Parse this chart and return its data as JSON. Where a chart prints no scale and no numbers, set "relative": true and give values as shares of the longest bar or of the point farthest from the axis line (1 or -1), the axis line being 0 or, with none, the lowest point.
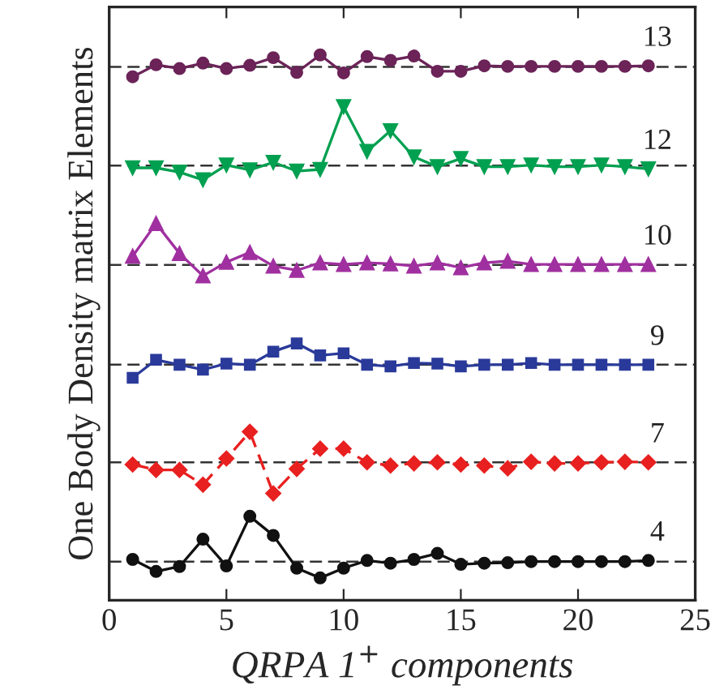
{
  "chart_data": {
    "type": "line",
    "relative": true,
    "xlabel": "QRPA 1$^{+}$ components",
    "ylabel": "One Body Density matrix Elements",
    "x": [
      1,
      2,
      3,
      4,
      5,
      6,
      7,
      8,
      9,
      10,
      11,
      12,
      13,
      14,
      15,
      16,
      17,
      18,
      19,
      20,
      21,
      22,
      23
    ],
    "xlim": [
      0,
      25
    ],
    "xticks": [
      0,
      5,
      10,
      15,
      20,
      25
    ],
    "grid": false,
    "legend": false,
    "series": [
      {
        "name": "13",
        "color": "#6b2358",
        "marker": "circle",
        "line_style": "solid",
        "values": [
          0.96,
          0.982,
          0.975,
          0.985,
          0.975,
          0.981,
          0.995,
          0.968,
          1.0,
          0.967,
          0.997,
          0.99,
          0.998,
          0.97,
          0.97,
          0.98,
          0.979,
          0.979,
          0.979,
          0.979,
          0.979,
          0.979,
          0.98
        ]
      },
      {
        "name": "12",
        "color": "#00a050",
        "marker": "triangle_down",
        "line_style": "solid",
        "values": [
          0.793,
          0.793,
          0.785,
          0.771,
          0.798,
          0.789,
          0.803,
          0.787,
          0.79,
          0.905,
          0.823,
          0.861,
          0.813,
          0.795,
          0.81,
          0.795,
          0.795,
          0.798,
          0.795,
          0.795,
          0.798,
          0.795,
          0.791
        ]
      },
      {
        "name": "10",
        "color": "#a030a0",
        "marker": "triangle",
        "line_style": "solid",
        "values": [
          0.631,
          0.691,
          0.636,
          0.595,
          0.62,
          0.638,
          0.613,
          0.605,
          0.619,
          0.616,
          0.619,
          0.617,
          0.613,
          0.619,
          0.61,
          0.619,
          0.622,
          0.616,
          0.616,
          0.616,
          0.616,
          0.616,
          0.616
        ]
      },
      {
        "name": "9",
        "color": "#2a3a9a",
        "marker": "square",
        "line_style": "solid",
        "values": [
          0.408,
          0.441,
          0.432,
          0.423,
          0.434,
          0.432,
          0.456,
          0.471,
          0.449,
          0.453,
          0.432,
          0.429,
          0.435,
          0.434,
          0.429,
          0.432,
          0.432,
          0.435,
          0.432,
          0.432,
          0.432,
          0.432,
          0.432
        ]
      },
      {
        "name": "7",
        "color": "#e82020",
        "marker": "diamond",
        "line_style": "dashed",
        "values": [
          0.249,
          0.239,
          0.239,
          0.212,
          0.26,
          0.309,
          0.196,
          0.241,
          0.278,
          0.278,
          0.253,
          0.247,
          0.251,
          0.253,
          0.249,
          0.247,
          0.242,
          0.254,
          0.251,
          0.251,
          0.253,
          0.254,
          0.253
        ]
      },
      {
        "name": "4",
        "color": "#111111",
        "marker": "circle",
        "line_style": "solid",
        "values": [
          0.075,
          0.053,
          0.062,
          0.112,
          0.063,
          0.154,
          0.119,
          0.059,
          0.041,
          0.059,
          0.073,
          0.068,
          0.075,
          0.086,
          0.066,
          0.068,
          0.069,
          0.071,
          0.071,
          0.071,
          0.071,
          0.071,
          0.073
        ]
      }
    ],
    "ref_lines": [
      {
        "axis": "y",
        "value": 0.978,
        "color": "#333333",
        "line_style": "dashed"
      },
      {
        "axis": "y",
        "value": 0.797,
        "color": "#333333",
        "line_style": "dashed"
      },
      {
        "axis": "y",
        "value": 0.615,
        "color": "#333333",
        "line_style": "dashed"
      },
      {
        "axis": "y",
        "value": 0.432,
        "color": "#333333",
        "line_style": "dashed"
      },
      {
        "axis": "y",
        "value": 0.253,
        "color": "#333333",
        "line_style": "dashed"
      },
      {
        "axis": "y",
        "value": 0.071,
        "color": "#333333",
        "line_style": "dashed"
      }
    ]
  }
}
